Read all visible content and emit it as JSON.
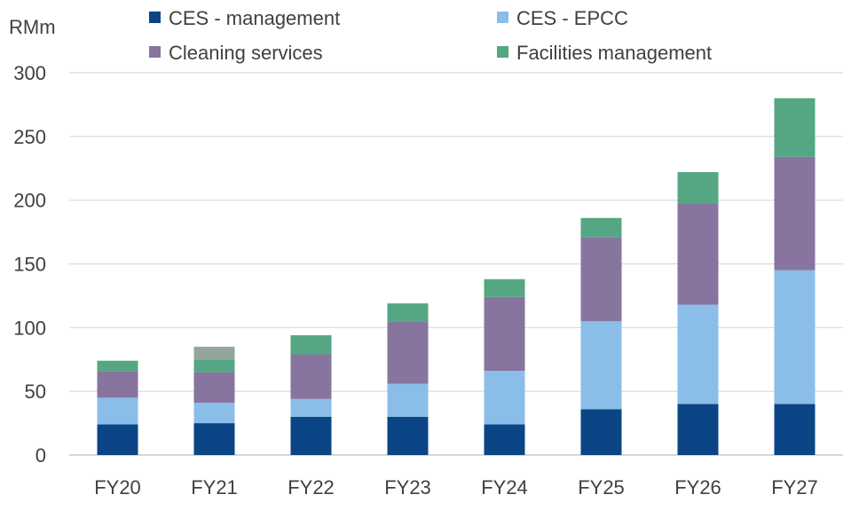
{
  "chart_data": {
    "type": "bar",
    "stacked": true,
    "title": "",
    "ylabel": "RMm",
    "xlabel": "",
    "ylim": [
      0,
      300
    ],
    "yticks": [
      0,
      50,
      100,
      150,
      200,
      250,
      300
    ],
    "grid": true,
    "legend_position": "top",
    "categories": [
      "FY20",
      "FY21",
      "FY22",
      "FY23",
      "FY24",
      "FY25",
      "FY26",
      "FY27"
    ],
    "series": [
      {
        "name": "CES - management",
        "color": "#0B4585",
        "values": [
          24,
          25,
          30,
          30,
          24,
          36,
          40,
          40
        ]
      },
      {
        "name": "CES - EPCC",
        "color": "#8BBDE9",
        "values": [
          21,
          16,
          14,
          26,
          42,
          69,
          78,
          105
        ]
      },
      {
        "name": "Cleaning services",
        "color": "#87749F",
        "values": [
          21,
          24,
          35,
          49,
          58,
          66,
          79,
          89
        ]
      },
      {
        "name": "Facilities management",
        "color": "#55A682",
        "values": [
          8,
          10,
          15,
          14,
          14,
          15,
          25,
          46
        ]
      }
    ],
    "extra_segments": [
      {
        "category": "FY21",
        "color": "#94A69C",
        "value": 10
      }
    ]
  }
}
